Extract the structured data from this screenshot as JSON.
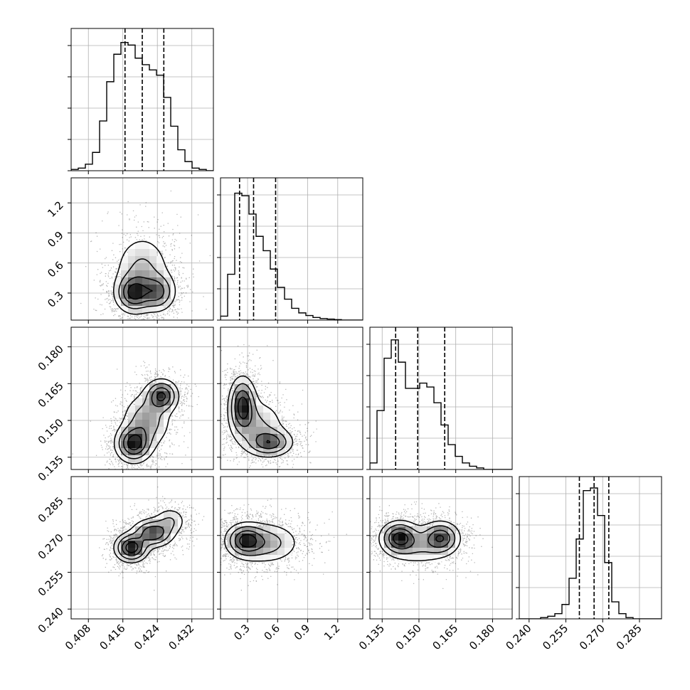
{
  "chart_data": {
    "type": "corner",
    "parameters": [
      {
        "range": [
          0.404,
          0.437
        ],
        "ticks": [
          "0.408",
          "0.416",
          "0.424",
          "0.432"
        ],
        "tick_values": [
          0.408,
          0.416,
          0.424,
          0.432
        ],
        "hist": [
          0.01,
          0.02,
          0.05,
          0.14,
          0.38,
          0.68,
          0.89,
          0.98,
          0.96,
          0.86,
          0.81,
          0.77,
          0.73,
          0.56,
          0.34,
          0.16,
          0.07,
          0.02,
          0.01,
          0.0
        ],
        "quantiles": [
          0.4165,
          0.4205,
          0.4255
        ]
      },
      {
        "range": [
          0.03,
          1.45
        ],
        "ticks": [
          "0.3",
          "0.6",
          "0.9",
          "1.2"
        ],
        "tick_values": [
          0.3,
          0.6,
          0.9,
          1.2
        ],
        "hist": [
          0.03,
          0.35,
          0.97,
          0.95,
          0.81,
          0.64,
          0.53,
          0.39,
          0.25,
          0.16,
          0.09,
          0.055,
          0.035,
          0.02,
          0.012,
          0.008,
          0.004,
          0.0,
          0.0,
          0.0
        ],
        "quantiles": [
          0.22,
          0.36,
          0.58
        ]
      },
      {
        "range": [
          0.13,
          0.188
        ],
        "ticks": [
          "0.135",
          "0.150",
          "0.165",
          "0.180"
        ],
        "tick_values": [
          0.135,
          0.15,
          0.165,
          0.18
        ],
        "hist": [
          0.05,
          0.45,
          0.85,
          0.99,
          0.82,
          0.62,
          0.62,
          0.66,
          0.63,
          0.51,
          0.34,
          0.19,
          0.1,
          0.05,
          0.025,
          0.012,
          0.0,
          0.0,
          0.0,
          0.0
        ],
        "quantiles": [
          0.1405,
          0.1495,
          0.1605
        ]
      },
      {
        "range": [
          0.236,
          0.294
        ],
        "ticks": [
          "0.240",
          "0.255",
          "0.270",
          "0.285"
        ],
        "tick_values": [
          0.24,
          0.255,
          0.27,
          0.285
        ],
        "hist": [
          0.0,
          0.0,
          0.0,
          0.01,
          0.02,
          0.04,
          0.11,
          0.31,
          0.61,
          0.98,
          1.0,
          0.79,
          0.43,
          0.13,
          0.04,
          0.01,
          0.0,
          0.0,
          0.0,
          0.0
        ],
        "quantiles": [
          0.2605,
          0.2665,
          0.2725
        ]
      }
    ],
    "pairs": [
      {
        "row": 1,
        "col": 0,
        "blobs": [
          {
            "x": 0.4185,
            "y": 0.3,
            "sx": 0.0022,
            "sy": 0.1,
            "w": 1.0
          },
          {
            "x": 0.424,
            "y": 0.31,
            "sx": 0.0022,
            "sy": 0.1,
            "w": 0.75
          },
          {
            "x": 0.4205,
            "y": 0.52,
            "sx": 0.0035,
            "sy": 0.2,
            "w": 0.45
          }
        ]
      },
      {
        "row": 2,
        "col": 0,
        "blobs": [
          {
            "x": 0.4185,
            "y": 0.1405,
            "sx": 0.0022,
            "sy": 0.004,
            "w": 1.0
          },
          {
            "x": 0.425,
            "y": 0.16,
            "sx": 0.002,
            "sy": 0.0035,
            "w": 0.9
          },
          {
            "x": 0.4215,
            "y": 0.15,
            "sx": 0.003,
            "sy": 0.006,
            "w": 0.5
          }
        ]
      },
      {
        "row": 2,
        "col": 1,
        "blobs": [
          {
            "x": 0.25,
            "y": 0.156,
            "sx": 0.07,
            "sy": 0.006,
            "w": 1.0
          },
          {
            "x": 0.52,
            "y": 0.141,
            "sx": 0.12,
            "sy": 0.003,
            "w": 0.75
          },
          {
            "x": 0.4,
            "y": 0.148,
            "sx": 0.15,
            "sy": 0.006,
            "w": 0.35
          }
        ]
      },
      {
        "row": 3,
        "col": 0,
        "blobs": [
          {
            "x": 0.418,
            "y": 0.265,
            "sx": 0.002,
            "sy": 0.003,
            "w": 1.0
          },
          {
            "x": 0.423,
            "y": 0.271,
            "sx": 0.0025,
            "sy": 0.003,
            "w": 0.8
          },
          {
            "x": 0.427,
            "y": 0.276,
            "sx": 0.002,
            "sy": 0.003,
            "w": 0.3
          }
        ]
      },
      {
        "row": 3,
        "col": 1,
        "blobs": [
          {
            "x": 0.28,
            "y": 0.268,
            "sx": 0.1,
            "sy": 0.0035,
            "w": 1.0
          },
          {
            "x": 0.48,
            "y": 0.267,
            "sx": 0.18,
            "sy": 0.0045,
            "w": 0.55
          }
        ]
      },
      {
        "row": 3,
        "col": 2,
        "blobs": [
          {
            "x": 0.142,
            "y": 0.269,
            "sx": 0.004,
            "sy": 0.0035,
            "w": 1.0
          },
          {
            "x": 0.159,
            "y": 0.269,
            "sx": 0.004,
            "sy": 0.0035,
            "w": 0.85
          },
          {
            "x": 0.15,
            "y": 0.266,
            "sx": 0.007,
            "sy": 0.0045,
            "w": 0.35
          }
        ]
      }
    ],
    "contour_levels": [
      0.12,
      0.3,
      0.55,
      0.8
    ],
    "grid": true,
    "colors": {
      "line": "#000000",
      "points": "#000000",
      "grid": "#b0b0b0",
      "background": "#ffffff"
    }
  }
}
